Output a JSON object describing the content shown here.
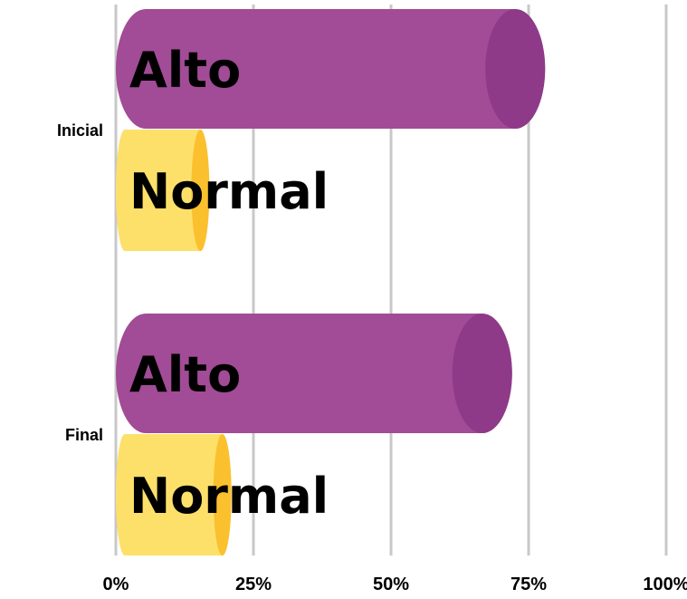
{
  "chart_data": {
    "type": "bar",
    "orientation": "horizontal",
    "style": "cylinder",
    "categories": [
      "Inicial",
      "Final"
    ],
    "series": [
      {
        "name": "Alto",
        "values": [
          78,
          72
        ],
        "color": "#a24b96",
        "cap_color": "#8e3a88"
      },
      {
        "name": "Normal",
        "values": [
          17,
          21
        ],
        "color": "#fde06a",
        "cap_color": "#fbc02d"
      }
    ],
    "data_labels": [
      [
        "Alto",
        "Alto"
      ],
      [
        "Normal",
        "Normal"
      ]
    ],
    "xlim": [
      0,
      100
    ],
    "x_ticks": [
      "0%",
      "25%",
      "50%",
      "75%",
      "100%"
    ],
    "grid": true,
    "legend": "none",
    "title": "",
    "xlabel": "",
    "ylabel": ""
  }
}
